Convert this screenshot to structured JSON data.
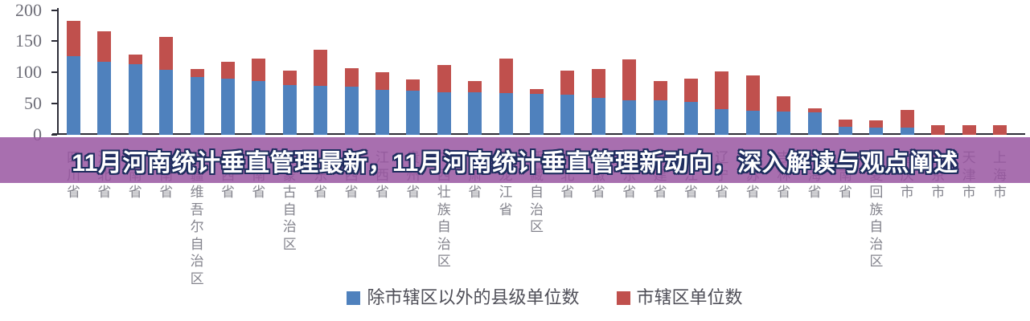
{
  "banner": {
    "title": "11月河南统计垂直管理最新，11月河南统计垂直管理新动向，深入解读与观点阐述",
    "background_color": "rgba(151,83,160,0.84)",
    "text_color": "#ffffff",
    "outline_color": "#1e2d5f"
  },
  "chart_data": {
    "type": "bar",
    "stacked": true,
    "title": "",
    "xlabel": "",
    "ylabel": "",
    "ylim": [
      0,
      200
    ],
    "yticks": [
      0,
      50,
      100,
      150,
      200
    ],
    "grid": false,
    "legend_position": "bottom-center",
    "categories": [
      "四川省",
      "河北省",
      "云南省",
      "河南省",
      "新疆维吾尔自治区",
      "山西省",
      "湖南省",
      "内蒙古自治区",
      "山东省",
      "陕西省",
      "江西省",
      "贵州省",
      "广西壮族自治区",
      "甘肃省",
      "黑龙江省",
      "西藏自治区",
      "湖北省",
      "安徽省",
      "广东省",
      "福建省",
      "浙江省",
      "辽宁省",
      "江苏省",
      "吉林省",
      "青海省",
      "海南省",
      "宁夏回族自治区",
      "重庆市",
      "北京市",
      "天津市",
      "上海市"
    ],
    "series": [
      {
        "name": "除市辖区以外的县级单位数",
        "color": "#4F81BD",
        "values": [
          127,
          118,
          113,
          105,
          93,
          90,
          87,
          80,
          79,
          77,
          72,
          71,
          69,
          68,
          67,
          66,
          65,
          59,
          56,
          55,
          53,
          41,
          39,
          37,
          36,
          13,
          12,
          11,
          0,
          0,
          0
        ]
      },
      {
        "name": "市辖区单位数",
        "color": "#C0504D",
        "values": [
          57,
          49,
          16,
          53,
          13,
          27,
          36,
          23,
          58,
          30,
          29,
          18,
          44,
          18,
          55,
          8,
          39,
          46,
          66,
          31,
          38,
          61,
          57,
          24,
          7,
          12,
          11,
          28,
          16,
          16,
          16
        ]
      }
    ]
  }
}
